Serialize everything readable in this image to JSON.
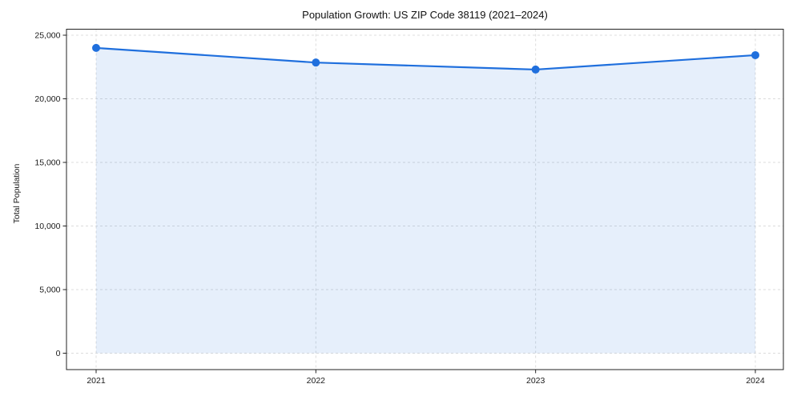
{
  "chart_data": {
    "type": "area",
    "title": "Population Growth: US ZIP Code 38119 (2021–2024)",
    "xlabel": "",
    "ylabel": "Total Population",
    "x": [
      2021,
      2022,
      2023,
      2024
    ],
    "values": [
      24000,
      22850,
      22300,
      23430
    ],
    "series_name": "Total Population",
    "ylim": [
      0,
      25000
    ],
    "yticks": [
      0,
      5000,
      10000,
      15000,
      20000,
      25000
    ],
    "ytick_labels": [
      "0",
      "5,000",
      "10,000",
      "15,000",
      "20,000",
      "25,000"
    ],
    "xtick_labels": [
      "2021",
      "2022",
      "2023",
      "2024"
    ],
    "grid": true,
    "grid_style": "dashed",
    "legend": false,
    "colors": {
      "line": "#1f6fdd",
      "marker": "#1f6fdd",
      "fill": "rgba(31, 111, 221, 0.11)",
      "grid": "#dcdcdc",
      "spine": "#222222",
      "text": "#1a1a1a",
      "background": "#ffffff"
    }
  }
}
